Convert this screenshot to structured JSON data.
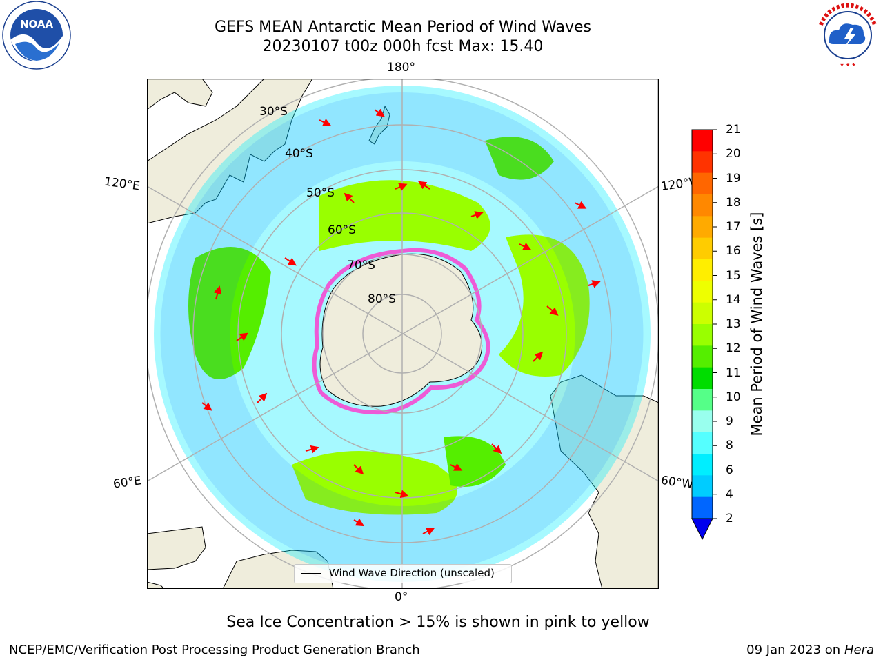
{
  "title": {
    "line1": "GEFS MEAN Antarctic Mean Period of Wind Waves",
    "line2": "20230107 t00z 000h fcst   Max: 15.40"
  },
  "logos": {
    "left": {
      "name": "noaa-logo",
      "text": "NOAA",
      "ring_text": "NATIONAL OCEANIC AND ATMOSPHERIC ADMINISTRATION · U.S. DEPARTMENT OF COMMERCE"
    },
    "right": {
      "name": "nws-logo",
      "ring_text": "NATIONAL WEATHER SERVICE"
    }
  },
  "map": {
    "projection": "south-polar-stereographic",
    "longitude_labels": {
      "top": "180°",
      "bottom": "0°",
      "upper_left": "120°E",
      "upper_right": "120°W",
      "lower_left": "60°E",
      "lower_right": "60°W"
    },
    "latitude_labels": [
      "30°S",
      "40°S",
      "50°S",
      "60°S",
      "70°S",
      "80°S"
    ],
    "colors": {
      "land": "#efeddc",
      "ocean_missing": "#ffffff",
      "arrow": "#ff0000",
      "grid": "#b0b0b0",
      "ice": "#ff33cc"
    }
  },
  "colorbar": {
    "label": "Mean Period of Wind Waves [s]",
    "ticks": [
      "21",
      "20",
      "19",
      "18",
      "17",
      "16",
      "15",
      "14",
      "13",
      "12",
      "11",
      "10",
      "9",
      "8",
      "6",
      "4",
      "2"
    ],
    "colors_top_to_bottom": [
      "#ff0000",
      "#ff3300",
      "#ff6600",
      "#ff8800",
      "#ffaa00",
      "#ffcc00",
      "#ffee00",
      "#eeff00",
      "#ccff00",
      "#99ff00",
      "#55ee00",
      "#00dd00",
      "#55ff88",
      "#99ffee",
      "#55ffff",
      "#00eeff",
      "#00ccff",
      "#0066ff"
    ],
    "extend_color": "#0000ee"
  },
  "legend": {
    "label": "Wind Wave Direction (unscaled)"
  },
  "footer": {
    "ice_note": "Sea Ice Concentration > 15% is shown in pink to yellow",
    "credit": "NCEP/EMC/Verification Post Processing Product Generation Branch",
    "date": "09 Jan 2023 on",
    "machine": "Hera"
  }
}
